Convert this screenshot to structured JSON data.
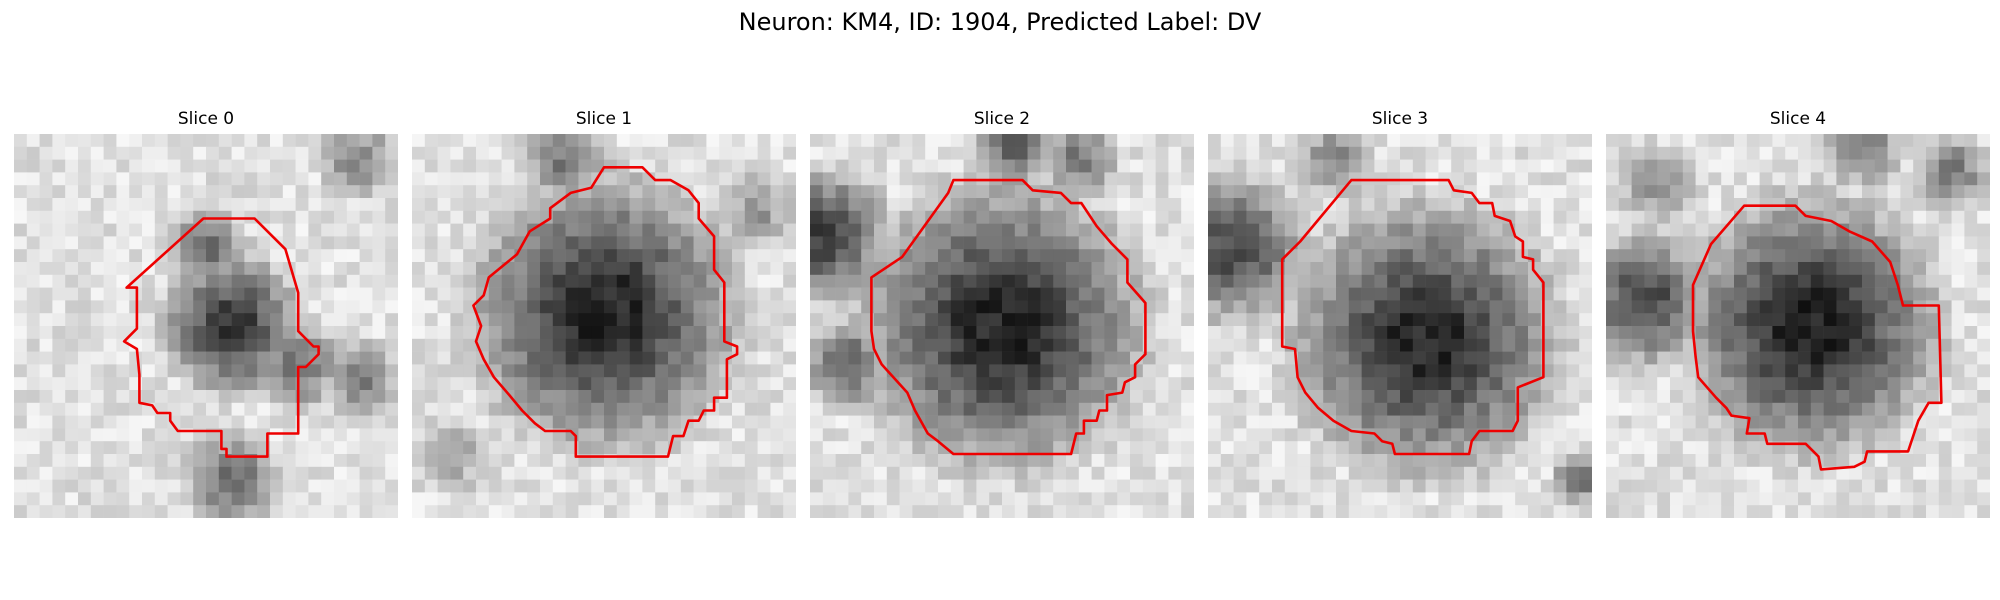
{
  "figure": {
    "title": "Neuron: KM4, ID: 1904, Predicted Label: DV",
    "outline_color": "#ee0000"
  },
  "panels": [
    {
      "label": "Slice 0"
    },
    {
      "label": "Slice 1"
    },
    {
      "label": "Slice 2"
    },
    {
      "label": "Slice 3"
    },
    {
      "label": "Slice 4"
    }
  ]
}
